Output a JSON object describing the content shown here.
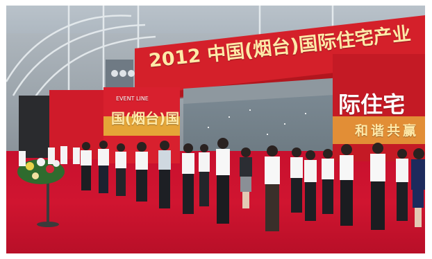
{
  "scene": {
    "description_labels": {
      "main_banner": "2012 中国(烟台)国际住宅产业",
      "right_panel_title": "际住宅",
      "right_panel_sub": "和谐共赢",
      "left_panel_title": "国(烟台)国",
      "left_panel_small": "EVENT LINE"
    },
    "colors": {
      "carpet": "#c8102e",
      "banner": "#d4202a",
      "panel_left": "#cf1b2a",
      "panel_right": "#c41a25",
      "text_gold": "#ffe9a8"
    }
  }
}
